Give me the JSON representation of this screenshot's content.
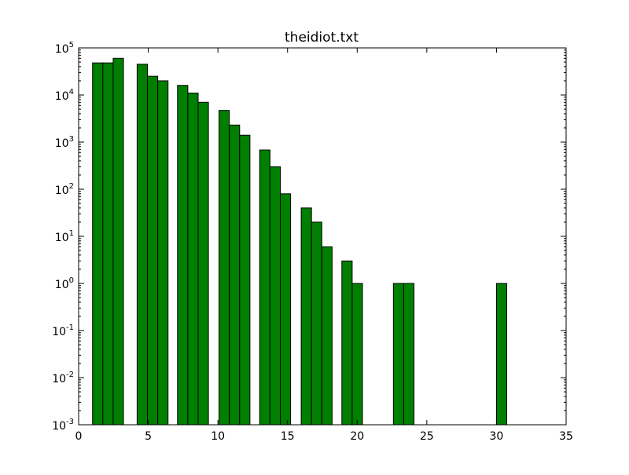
{
  "chart_data": {
    "type": "bar",
    "title": "theidiot.txt",
    "xlabel": "",
    "ylabel": "",
    "xlim": [
      0,
      35
    ],
    "ylim": [
      0.001,
      100000
    ],
    "yscale": "log",
    "grid": false,
    "bar_color": "#007f00",
    "bar_width": 0.74,
    "x_ticks": [
      "0",
      "5",
      "10",
      "15",
      "20",
      "25",
      "30",
      "35"
    ],
    "y_ticks": [
      {
        "base": "10",
        "exp": "-3"
      },
      {
        "base": "10",
        "exp": "-2"
      },
      {
        "base": "10",
        "exp": "-1"
      },
      {
        "base": "10",
        "exp": "0"
      },
      {
        "base": "10",
        "exp": "1"
      },
      {
        "base": "10",
        "exp": "2"
      },
      {
        "base": "10",
        "exp": "3"
      },
      {
        "base": "10",
        "exp": "4"
      },
      {
        "base": "10",
        "exp": "5"
      }
    ],
    "bars": [
      {
        "x": 1.0,
        "value": 48000
      },
      {
        "x": 1.74,
        "value": 48000
      },
      {
        "x": 2.48,
        "value": 60000
      },
      {
        "x": 4.2,
        "value": 45000
      },
      {
        "x": 4.94,
        "value": 25000
      },
      {
        "x": 5.68,
        "value": 20000
      },
      {
        "x": 7.1,
        "value": 16000
      },
      {
        "x": 7.84,
        "value": 11000
      },
      {
        "x": 8.58,
        "value": 7000
      },
      {
        "x": 10.08,
        "value": 4700
      },
      {
        "x": 10.82,
        "value": 2300
      },
      {
        "x": 11.56,
        "value": 1400
      },
      {
        "x": 13.0,
        "value": 680
      },
      {
        "x": 13.74,
        "value": 300
      },
      {
        "x": 14.48,
        "value": 80
      },
      {
        "x": 15.98,
        "value": 40
      },
      {
        "x": 16.72,
        "value": 20
      },
      {
        "x": 17.46,
        "value": 6
      },
      {
        "x": 18.9,
        "value": 3
      },
      {
        "x": 19.64,
        "value": 1
      },
      {
        "x": 22.6,
        "value": 1
      },
      {
        "x": 23.34,
        "value": 1
      },
      {
        "x": 30.0,
        "value": 1
      }
    ]
  }
}
